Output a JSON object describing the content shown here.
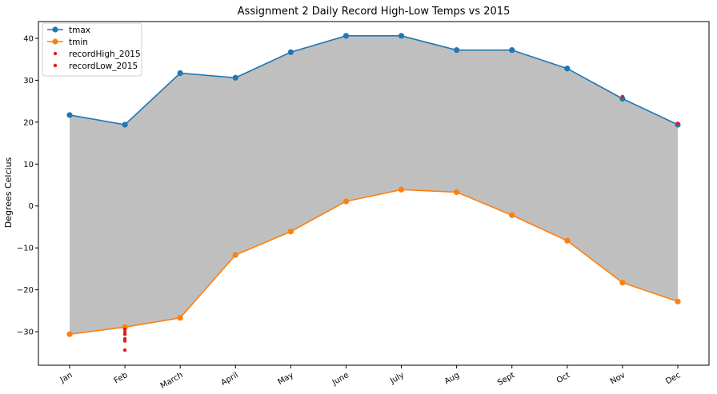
{
  "chart_data": {
    "type": "line",
    "title": "Assignment 2 Daily Record High-Low Temps vs 2015",
    "xlabel": "",
    "ylabel": "Degrees Celcius",
    "categories": [
      "Jan",
      "Feb",
      "March",
      "April",
      "May",
      "June",
      "July",
      "Aug",
      "Sept",
      "Oct",
      "Nov",
      "Dec"
    ],
    "ylim": [
      -38,
      44
    ],
    "yticks": [
      -30,
      -20,
      -10,
      0,
      10,
      20,
      30,
      40
    ],
    "grid": false,
    "legend_position": "top-left",
    "fill_between": {
      "color": "#bfbfbf",
      "series": [
        "tmax",
        "tmin"
      ]
    },
    "series": [
      {
        "name": "tmax",
        "color": "#1f77b4",
        "marker": "circle",
        "values": [
          21.7,
          19.4,
          31.7,
          30.6,
          36.7,
          40.6,
          40.6,
          37.2,
          37.2,
          32.8,
          25.6,
          19.4
        ]
      },
      {
        "name": "tmin",
        "color": "#ff7f0e",
        "marker": "circle",
        "values": [
          -30.6,
          -28.9,
          -26.7,
          -11.7,
          -6.1,
          1.1,
          3.9,
          3.3,
          -2.2,
          -8.3,
          -18.3,
          -22.8
        ]
      }
    ],
    "scatter_series": [
      {
        "name": "recordHigh_2015",
        "color": "#e41a1c",
        "points": [
          {
            "x": "Nov",
            "y": 26.1
          },
          {
            "x": "Dec",
            "y": 19.7
          }
        ]
      },
      {
        "name": "recordLow_2015",
        "color": "#e41a1c",
        "points": [
          {
            "x": "Feb",
            "y": -29.4
          },
          {
            "x": "Feb",
            "y": -30.0
          },
          {
            "x": "Feb",
            "y": -30.6
          },
          {
            "x": "Feb",
            "y": -31.7
          },
          {
            "x": "Feb",
            "y": -32.2
          },
          {
            "x": "Feb",
            "y": -34.4
          }
        ]
      }
    ]
  }
}
